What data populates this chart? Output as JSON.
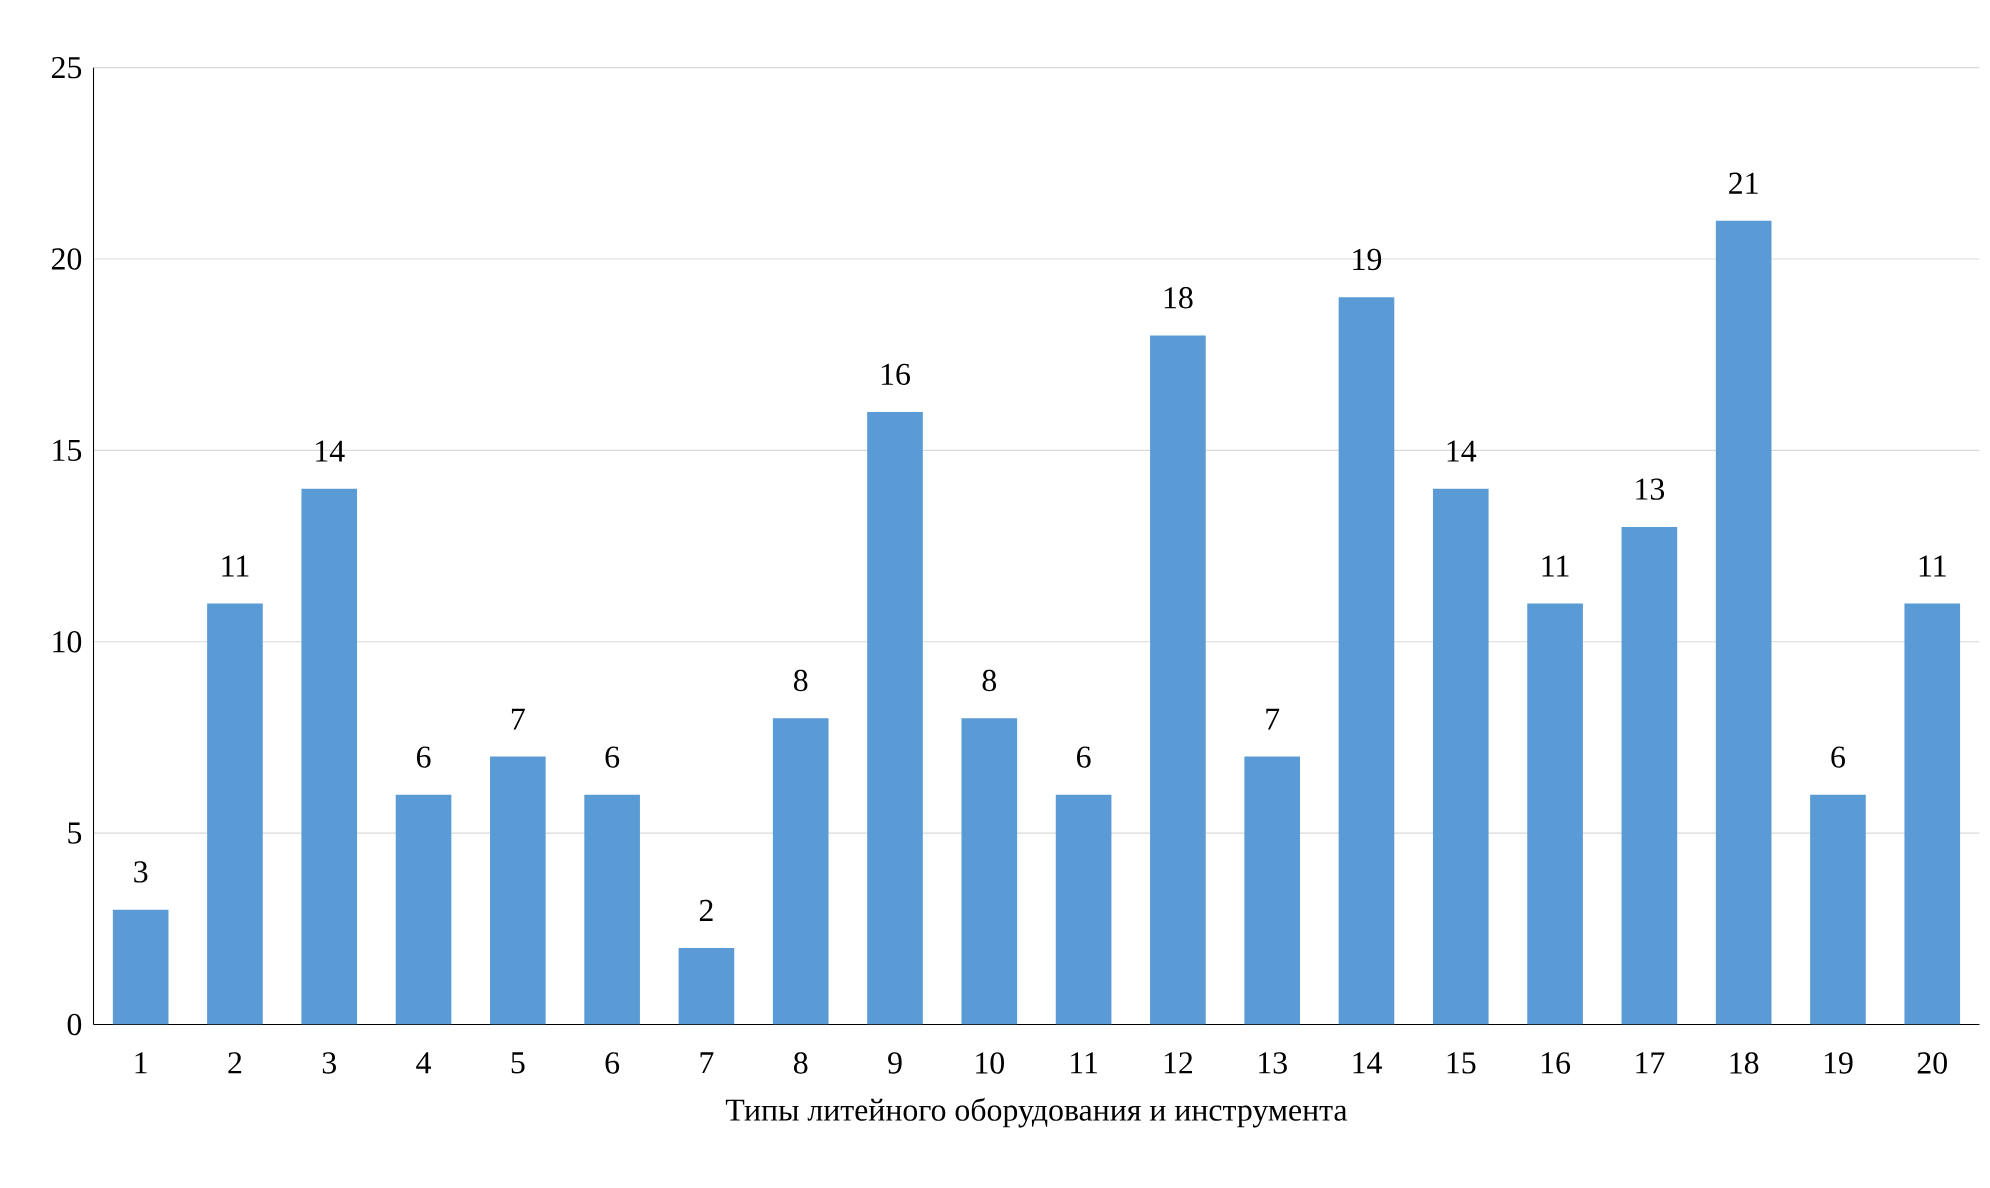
{
  "chart_data": {
    "type": "bar",
    "xlabel": "Типы литейного оборудования и инструмента",
    "categories": [
      "1",
      "2",
      "3",
      "4",
      "5",
      "6",
      "7",
      "8",
      "9",
      "10",
      "11",
      "12",
      "13",
      "14",
      "15",
      "16",
      "17",
      "18",
      "19",
      "20"
    ],
    "values": [
      3,
      11,
      14,
      6,
      7,
      6,
      2,
      8,
      16,
      8,
      6,
      18,
      7,
      19,
      14,
      11,
      13,
      21,
      6,
      11
    ],
    "color": "#5b9bd5",
    "ylim": [
      0,
      25
    ],
    "yticks": [
      0,
      5,
      10,
      15,
      20,
      25
    ],
    "grid": "y",
    "data_labels": true
  }
}
